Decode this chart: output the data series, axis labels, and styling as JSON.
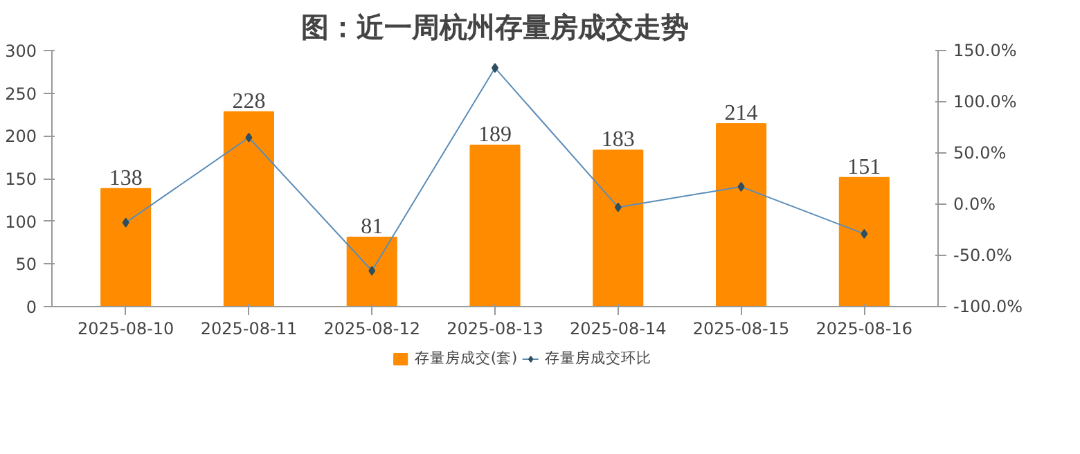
{
  "chart_data": {
    "type": "bar",
    "title": "图：近一周杭州存量房成交走势",
    "categories": [
      "2025-08-10",
      "2025-08-11",
      "2025-08-12",
      "2025-08-13",
      "2025-08-14",
      "2025-08-15",
      "2025-08-16"
    ],
    "series": [
      {
        "name": "存量房成交(套)",
        "color": "#ff8c00",
        "values": [
          138,
          228,
          81,
          189,
          183,
          214,
          151
        ],
        "value_labels": [
          "138",
          "228",
          "81",
          "189",
          "183",
          "214",
          "151"
        ]
      },
      {
        "name": "存量房成交环比",
        "type": "line",
        "axis": "y2",
        "color": "#5b8db8",
        "marker": "diamond",
        "values": [
          -18,
          65,
          -65,
          133,
          -3,
          17,
          -29
        ]
      }
    ],
    "ylim": [
      0,
      300
    ],
    "yticks": [
      0,
      50,
      100,
      150,
      200,
      250,
      300
    ],
    "y2lim": [
      -100,
      150
    ],
    "y2ticks": [
      {
        "value": -100,
        "label": "-100.0%"
      },
      {
        "value": -50,
        "label": "-50.0%"
      },
      {
        "value": 0,
        "label": "0.0%"
      },
      {
        "value": 50,
        "label": "50.0%"
      },
      {
        "value": 100,
        "label": "100.0%"
      },
      {
        "value": 150,
        "label": "150.0%"
      }
    ],
    "grid": false,
    "legend": "bottom"
  }
}
